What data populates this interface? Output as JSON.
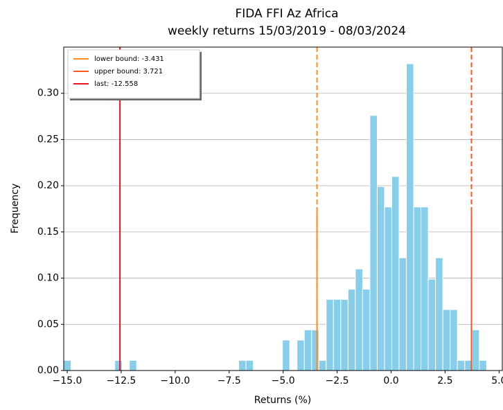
{
  "chart_data": {
    "type": "histogram",
    "title": "FIDA FFI Az Africa",
    "subtitle": "weekly returns 15/03/2019 - 08/03/2024",
    "x_label": "Returns (%)",
    "y_label": "Frequency",
    "bins": [
      -15.16,
      -14.822,
      -14.485,
      -14.147,
      -13.81,
      -13.472,
      -13.134,
      -12.797,
      -12.459,
      -12.122,
      -11.784,
      -11.446,
      -11.109,
      -10.771,
      -10.434,
      -10.096,
      -9.758,
      -9.421,
      -9.083,
      -8.746,
      -8.408,
      -8.07,
      -7.733,
      -7.395,
      -7.058,
      -6.72,
      -6.382,
      -6.045,
      -5.707,
      -5.37,
      -5.032,
      -4.694,
      -4.357,
      -4.019,
      -3.682,
      -3.344,
      -3.006,
      -2.669,
      -2.331,
      -1.994,
      -1.656,
      -1.318,
      -0.981,
      -0.643,
      -0.306,
      0.032,
      0.37,
      0.707,
      1.045,
      1.382,
      1.72,
      2.058,
      2.395,
      2.733,
      3.07,
      3.408,
      3.746,
      4.083,
      4.421
    ],
    "values": [
      0.011,
      0,
      0,
      0,
      0,
      0,
      0,
      0.011,
      0,
      0.011,
      0,
      0,
      0,
      0,
      0,
      0,
      0,
      0,
      0,
      0,
      0,
      0,
      0,
      0,
      0.011,
      0.011,
      0,
      0,
      0,
      0,
      0.033,
      0,
      0.033,
      0.044,
      0.044,
      0.011,
      0.077,
      0.077,
      0.077,
      0.088,
      0.11,
      0.088,
      0.276,
      0.199,
      0.177,
      0.21,
      0.122,
      0.332,
      0.177,
      0.177,
      0.099,
      0.122,
      0.066,
      0.066,
      0.011,
      0.011,
      0.044,
      0.011
    ],
    "color": "#87ceeb",
    "lines": [
      {
        "name": "lower bound: -3.431",
        "x": -3.431,
        "color": "#ff8c1a",
        "style": "dashed"
      },
      {
        "name": "upper bound: 3.721",
        "x": 3.721,
        "color": "#ff5722",
        "style": "dashed"
      },
      {
        "name": "last: -12.558",
        "x": -12.558,
        "color": "#e8151b",
        "style": "solid"
      }
    ],
    "xlim": [
      -15.16,
      5.15
    ],
    "ylim": [
      0,
      0.35
    ],
    "xticks": [
      {
        "value": -15,
        "label": "−15.0"
      },
      {
        "value": -12.5,
        "label": "−12.5"
      },
      {
        "value": -10,
        "label": "−10.0"
      },
      {
        "value": -7.5,
        "label": "−7.5"
      },
      {
        "value": -5,
        "label": "−5.0"
      },
      {
        "value": -2.5,
        "label": "−2.5"
      },
      {
        "value": 0,
        "label": "0.0"
      },
      {
        "value": 2.5,
        "label": "2.5"
      },
      {
        "value": 5,
        "label": "5.0"
      }
    ],
    "yticks": [
      {
        "value": 0,
        "label": "0.00"
      },
      0.05,
      {
        "value": 0.1,
        "label": "0.10"
      },
      0.15,
      {
        "value": 0.2,
        "label": "0.20"
      },
      0.25,
      {
        "value": 0.3,
        "label": "0.30"
      }
    ],
    "grid": "y",
    "legend": "upper left"
  }
}
